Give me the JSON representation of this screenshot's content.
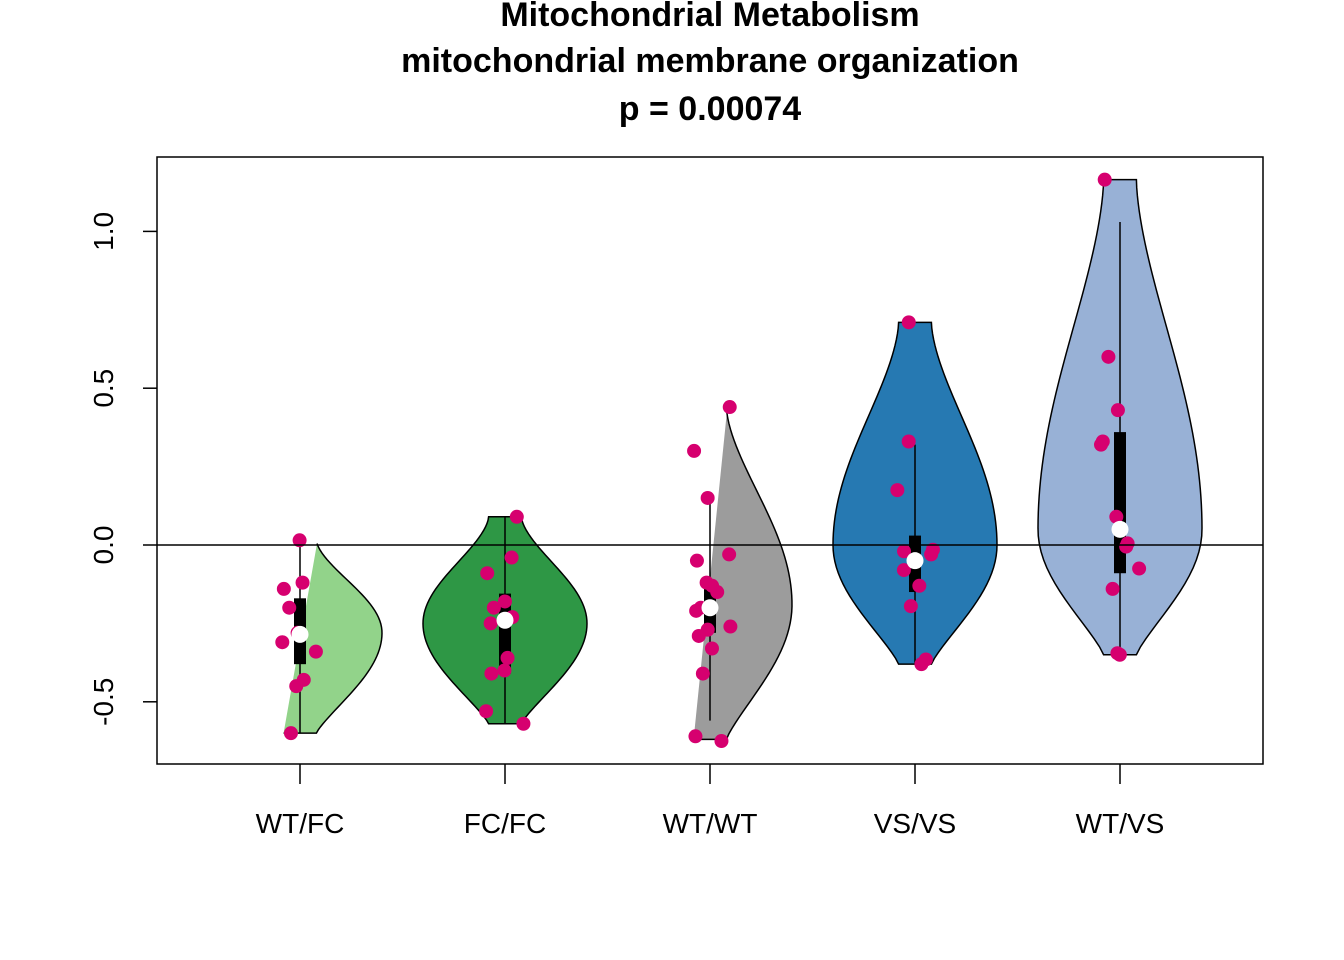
{
  "chart_data": {
    "type": "violin",
    "title": [
      "Mitochondrial Metabolism",
      "mitochondrial membrane organization",
      "p = 0.00074"
    ],
    "xlabel": "",
    "ylabel": "",
    "ylim": [
      -0.7,
      1.23
    ],
    "yticks": [
      -0.5,
      0.0,
      0.5,
      1.0
    ],
    "ytick_labels": [
      "-0.5",
      "0.0",
      "0.5",
      "1.0"
    ],
    "reference_line_y": 0.0,
    "grid": false,
    "legend": "none",
    "groups": [
      {
        "label": "WT/FC",
        "color": "#92d38a",
        "min": -0.6,
        "max": 0.015,
        "median": -0.285,
        "q1": -0.38,
        "q3": -0.17,
        "whisker_low": -0.6,
        "whisker_high": 0.015,
        "density_peak": -0.28,
        "points": [
          0.015,
          -0.12,
          -0.14,
          -0.2,
          -0.28,
          -0.285,
          -0.31,
          -0.34,
          -0.43,
          -0.45,
          -0.6
        ]
      },
      {
        "label": "FC/FC",
        "color": "#2e9745",
        "min": -0.57,
        "max": 0.09,
        "median": -0.24,
        "q1": -0.41,
        "q3": -0.155,
        "whisker_low": -0.57,
        "whisker_high": 0.09,
        "density_peak": -0.25,
        "points": [
          0.09,
          -0.04,
          -0.09,
          -0.18,
          -0.2,
          -0.23,
          -0.25,
          -0.36,
          -0.4,
          -0.41,
          -0.53,
          -0.57
        ]
      },
      {
        "label": "WT/WT",
        "color": "#9c9c9c",
        "min": -0.62,
        "max": 0.44,
        "median": -0.2,
        "q1": -0.28,
        "q3": -0.14,
        "whisker_low": -0.56,
        "whisker_high": 0.14,
        "density_peak": -0.19,
        "points": [
          0.44,
          0.3,
          0.15,
          -0.03,
          -0.05,
          -0.12,
          -0.13,
          -0.15,
          -0.2,
          -0.21,
          -0.26,
          -0.27,
          -0.29,
          -0.33,
          -0.41,
          -0.61,
          -0.625
        ]
      },
      {
        "label": "VS/VS",
        "color": "#2679b2",
        "min": -0.38,
        "max": 0.71,
        "median": -0.05,
        "q1": -0.15,
        "q3": 0.03,
        "whisker_low": -0.38,
        "whisker_high": 0.32,
        "density_peak": 0.0,
        "points": [
          0.71,
          0.33,
          0.175,
          -0.015,
          -0.02,
          -0.03,
          -0.05,
          -0.08,
          -0.13,
          -0.195,
          -0.365,
          -0.38
        ]
      },
      {
        "label": "WT/VS",
        "color": "#98b1d6",
        "min": -0.35,
        "max": 1.165,
        "median": 0.05,
        "q1": -0.09,
        "q3": 0.36,
        "whisker_low": -0.35,
        "whisker_high": 1.03,
        "density_peak": 0.05,
        "points": [
          1.165,
          0.6,
          0.43,
          0.33,
          0.32,
          0.09,
          0.005,
          -0.005,
          -0.075,
          -0.14,
          -0.345,
          -0.35
        ]
      }
    ],
    "point_color": "#d6006f",
    "median_color": "#ffffff",
    "box_color": "#000000"
  }
}
